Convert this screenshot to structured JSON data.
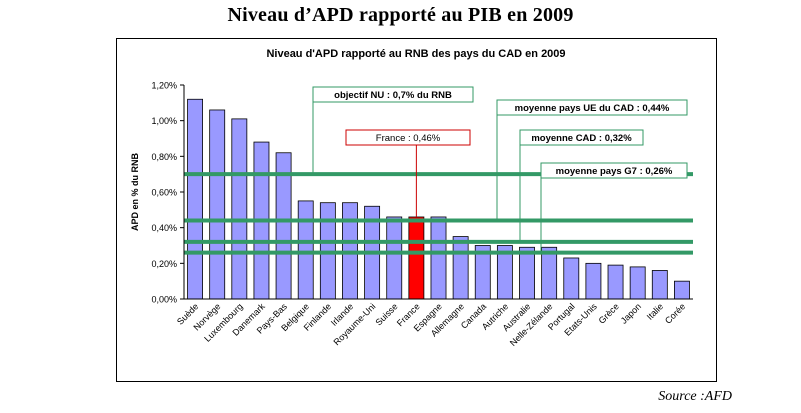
{
  "document": {
    "title": "Niveau d’APD rapporté au PIB en 2009",
    "source": "Source :AFD"
  },
  "colors": {
    "bar": "#9999ff",
    "highlight_bar": "#ff0000",
    "reference_line": "#339966",
    "plot_background": "#ffffff"
  },
  "chart_data": {
    "type": "bar",
    "title": "Niveau d'APD rapporté au RNB des pays du CAD en 2009",
    "xlabel": "",
    "ylabel": "APD en % du RNB",
    "ylim": [
      0,
      1.2
    ],
    "yticks": [
      0,
      0.2,
      0.4,
      0.6,
      0.8,
      1.0,
      1.2
    ],
    "ytick_labels": [
      "0,00%",
      "0,20%",
      "0,40%",
      "0,60%",
      "0,80%",
      "1,00%",
      "1,20%"
    ],
    "categories": [
      "Suède",
      "Norvège",
      "Luxembourg",
      "Danemark",
      "Pays-Bas",
      "Belgique",
      "Finlande",
      "Irlande",
      "Royaume-Uni",
      "Suisse",
      "France",
      "Espagne",
      "Allemagne",
      "Canada",
      "Autriche",
      "Australie",
      "Nelle-Zélande",
      "Portugal",
      "Etats-Unis",
      "Grèce",
      "Japon",
      "Italie",
      "Corée"
    ],
    "values": [
      1.12,
      1.06,
      1.01,
      0.88,
      0.82,
      0.55,
      0.54,
      0.54,
      0.52,
      0.46,
      0.46,
      0.46,
      0.35,
      0.3,
      0.3,
      0.29,
      0.29,
      0.23,
      0.2,
      0.19,
      0.18,
      0.16,
      0.1
    ],
    "highlight": "France",
    "grid": false,
    "reference_lines": [
      {
        "label": "objectif NU : 0,7% du RNB",
        "value": 0.7
      },
      {
        "label": "moyenne pays UE du CAD : 0,44%",
        "value": 0.44
      },
      {
        "label": "moyenne CAD : 0,32%",
        "value": 0.32
      },
      {
        "label": "moyenne pays G7 : 0,26%",
        "value": 0.26
      }
    ],
    "annotation": {
      "label": "France : 0,46%",
      "target": "France"
    }
  }
}
